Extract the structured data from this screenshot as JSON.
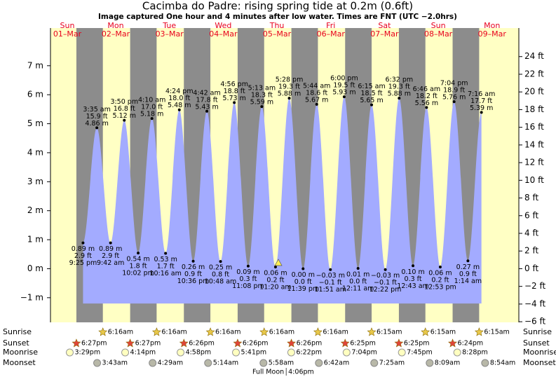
{
  "chart_data": {
    "type": "tide",
    "title": "Cacimba do Padre: rising  spring tide at 0.2m (0.6ft)",
    "subtitle": "Image captured One hour and 4 minutes after low water. Times are FNT (UTC −2.0hrs)",
    "ylim": [
      -1.85,
      8.3
    ],
    "yticks": [
      {
        "value": -1,
        "label": "−1 m"
      },
      {
        "value": 0,
        "label": "0 m"
      },
      {
        "value": 1,
        "label": "1 m"
      },
      {
        "value": 2,
        "label": "2 m"
      },
      {
        "value": 3,
        "label": "3 m"
      },
      {
        "value": 4,
        "label": "4 m"
      },
      {
        "value": 5,
        "label": "5 m"
      },
      {
        "value": 6,
        "label": "6 m"
      },
      {
        "value": 7,
        "label": "7 m"
      }
    ],
    "y2lim": [
      -6.07,
      27.23
    ],
    "y2ticks": [
      {
        "value": -6,
        "label": "−6 ft"
      },
      {
        "value": -4,
        "label": "−4 ft"
      },
      {
        "value": -2,
        "label": "−2 ft"
      },
      {
        "value": 0,
        "label": "0 ft"
      },
      {
        "value": 2,
        "label": "2 ft"
      },
      {
        "value": 4,
        "label": "4 ft"
      },
      {
        "value": 6,
        "label": "6 ft"
      },
      {
        "value": 8,
        "label": "8 ft"
      },
      {
        "value": 10,
        "label": "10 ft"
      },
      {
        "value": 12,
        "label": "12 ft"
      },
      {
        "value": 14,
        "label": "14 ft"
      },
      {
        "value": 16,
        "label": "16 ft"
      },
      {
        "value": 18,
        "label": "18 ft"
      },
      {
        "value": 20,
        "label": "20 ft"
      },
      {
        "value": 22,
        "label": "22 ft"
      },
      {
        "value": 24,
        "label": "24 ft"
      }
    ],
    "row_labels": {
      "sunrise": "Sunrise",
      "sunset": "Sunset",
      "moonrise": "Moonrise",
      "moonset": "Moonset"
    },
    "days": [
      {
        "name": "Sun",
        "date": "01–Mar",
        "sunset": "6:27pm",
        "moonrise": "3:29pm",
        "extremes": [
          {
            "time": "9:25 pm",
            "m": 0.89,
            "m_label": "0.89 m",
            "ft_label": "2.9 ft"
          }
        ]
      },
      {
        "name": "Mon",
        "date": "02–Mar",
        "sunrise": "6:16am",
        "sunset": "6:27pm",
        "moonrise": "4:14pm",
        "moonset": "3:43am",
        "extremes": [
          {
            "time": "3:35 am",
            "m": 4.86,
            "m_label": "4.86 m",
            "ft_label": "15.9 ft"
          },
          {
            "time": "9:42 am",
            "m": 0.89,
            "m_label": "0.89 m",
            "ft_label": "2.9 ft"
          },
          {
            "time": "3:50 pm",
            "m": 5.12,
            "m_label": "5.12 m",
            "ft_label": "16.8 ft"
          },
          {
            "time": "10:02 pm",
            "m": 0.54,
            "m_label": "0.54 m",
            "ft_label": "1.8 ft"
          }
        ]
      },
      {
        "name": "Tue",
        "date": "03–Mar",
        "sunrise": "6:16am",
        "sunset": "6:26pm",
        "moonrise": "4:58pm",
        "moonset": "4:29am",
        "extremes": [
          {
            "time": "4:10 am",
            "m": 5.18,
            "m_label": "5.18 m",
            "ft_label": "17.0 ft"
          },
          {
            "time": "10:16 am",
            "m": 0.53,
            "m_label": "0.53 m",
            "ft_label": "1.7 ft"
          },
          {
            "time": "4:24 pm",
            "m": 5.48,
            "m_label": "5.48 m",
            "ft_label": "18.0 ft"
          },
          {
            "time": "10:36 pm",
            "m": 0.26,
            "m_label": "0.26 m",
            "ft_label": "0.9 ft"
          }
        ]
      },
      {
        "name": "Wed",
        "date": "04–Mar",
        "sunrise": "6:16am",
        "sunset": "6:26pm",
        "moonrise": "5:41pm",
        "moonset": "5:14am",
        "extremes": [
          {
            "time": "4:42 am",
            "m": 5.43,
            "m_label": "5.43 m",
            "ft_label": "17.8 ft"
          },
          {
            "time": "10:48 am",
            "m": 0.25,
            "m_label": "0.25 m",
            "ft_label": "0.8 ft"
          },
          {
            "time": "4:56 pm",
            "m": 5.73,
            "m_label": "5.73 m",
            "ft_label": "18.8 ft"
          },
          {
            "time": "11:08 pm",
            "m": 0.09,
            "m_label": "0.09 m",
            "ft_label": "0.3 ft"
          }
        ]
      },
      {
        "name": "Thu",
        "date": "05–Mar",
        "sunrise": "6:16am",
        "sunset": "6:26pm",
        "moonrise": "6:22pm",
        "moonset": "5:58am",
        "full_moon": {
          "label": "Full Moon",
          "time": "4:06pm"
        },
        "extremes": [
          {
            "time": "5:13 am",
            "m": 5.59,
            "m_label": "5.59 m",
            "ft_label": "18.3 ft"
          },
          {
            "time": "11:20 am",
            "m": 0.06,
            "m_label": "0.06 m",
            "ft_label": "0.2 ft"
          },
          {
            "time": "5:28 pm",
            "m": 5.88,
            "m_label": "5.88 m",
            "ft_label": "19.3 ft"
          },
          {
            "time": "11:39 pm",
            "m": 0.0,
            "m_label": "0.00 m",
            "ft_label": "0.0 ft"
          }
        ]
      },
      {
        "name": "Fri",
        "date": "06–Mar",
        "sunrise": "6:16am",
        "sunset": "6:25pm",
        "moonrise": "7:04pm",
        "moonset": "6:42am",
        "extremes": [
          {
            "time": "5:44 am",
            "m": 5.67,
            "m_label": "5.67 m",
            "ft_label": "18.6 ft"
          },
          {
            "time": "11:51 am",
            "m": -0.03,
            "m_label": "−0.03 m",
            "ft_label": "−0.1 ft"
          },
          {
            "time": "6:00 pm",
            "m": 5.93,
            "m_label": "5.93 m",
            "ft_label": "19.5 ft"
          }
        ]
      },
      {
        "name": "Sat",
        "date": "07–Mar",
        "sunrise": "6:15am",
        "sunset": "6:25pm",
        "moonrise": "7:45pm",
        "moonset": "7:25am",
        "extremes": [
          {
            "time": "12:11 am",
            "m": 0.01,
            "m_label": "0.01 m",
            "ft_label": "0.0 ft"
          },
          {
            "time": "6:15 am",
            "m": 5.65,
            "m_label": "5.65 m",
            "ft_label": "18.5 ft"
          },
          {
            "time": "12:22 pm",
            "m": -0.03,
            "m_label": "−0.03 m",
            "ft_label": "−0.1 ft"
          },
          {
            "time": "6:32 pm",
            "m": 5.88,
            "m_label": "5.88 m",
            "ft_label": "19.3 ft"
          }
        ]
      },
      {
        "name": "Sun",
        "date": "08–Mar",
        "sunrise": "6:15am",
        "sunset": "6:24pm",
        "moonrise": "8:28pm",
        "moonset": "8:09am",
        "extremes": [
          {
            "time": "12:43 am",
            "m": 0.1,
            "m_label": "0.10 m",
            "ft_label": "0.3 ft"
          },
          {
            "time": "6:46 am",
            "m": 5.56,
            "m_label": "5.56 m",
            "ft_label": "18.2 ft"
          },
          {
            "time": "12:53 pm",
            "m": 0.06,
            "m_label": "0.06 m",
            "ft_label": "0.2 ft"
          },
          {
            "time": "7:04 pm",
            "m": 5.76,
            "m_label": "5.76 m",
            "ft_label": "18.9 ft"
          }
        ]
      },
      {
        "name": "Mon",
        "date": "09–Mar",
        "sunrise": "6:15am",
        "moonset": "8:54am",
        "extremes": [
          {
            "time": "1:14 am",
            "m": 0.27,
            "m_label": "0.27 m",
            "ft_label": "0.9 ft"
          },
          {
            "time": "7:16 am",
            "m": 5.39,
            "m_label": "5.39 m",
            "ft_label": "17.7 ft"
          }
        ]
      }
    ]
  }
}
